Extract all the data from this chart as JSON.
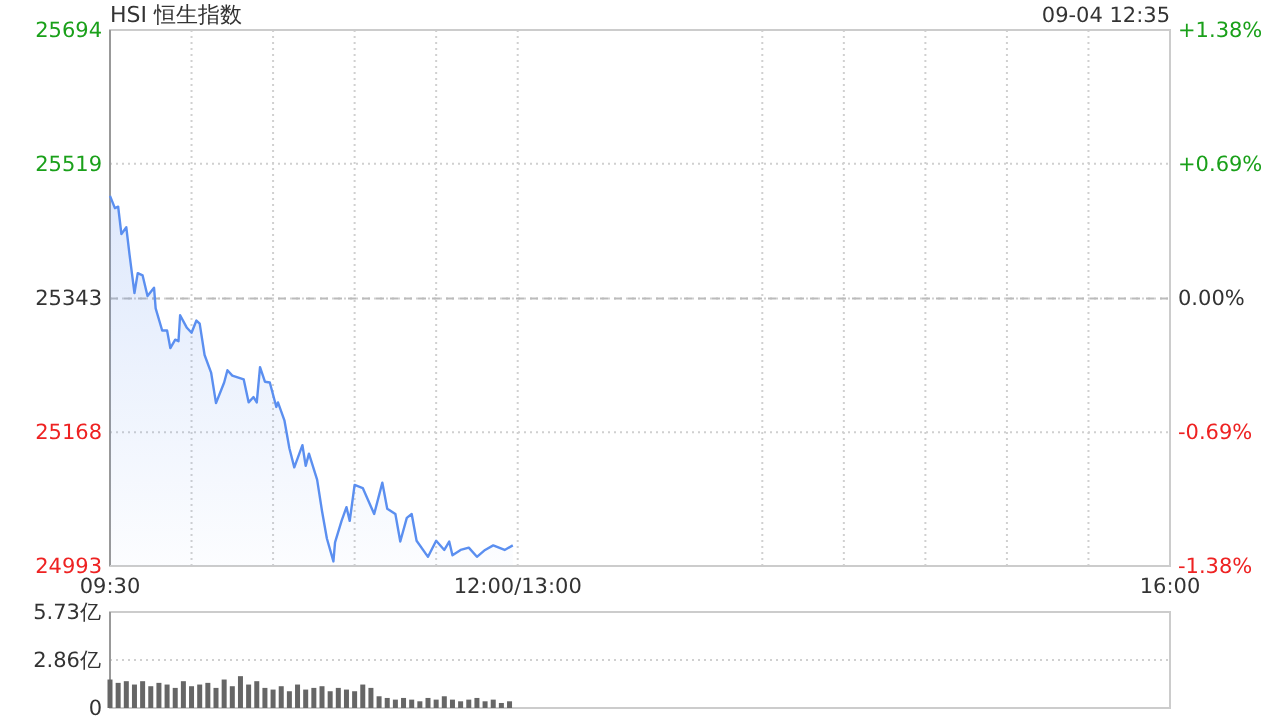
{
  "chart_data": [
    {
      "type": "area",
      "title": "HSI 恒生指数",
      "annotations": [
        "09-04 12:35"
      ],
      "x": [
        9.5,
        9.53,
        9.55,
        9.57,
        9.6,
        9.62,
        9.65,
        9.67,
        9.7,
        9.73,
        9.77,
        9.78,
        9.82,
        9.85,
        9.87,
        9.9,
        9.92,
        9.93,
        9.97,
        10,
        10.03,
        10.05,
        10.08,
        10.12,
        10.15,
        10.2,
        10.22,
        10.25,
        10.32,
        10.35,
        10.38,
        10.4,
        10.42,
        10.45,
        10.48,
        10.52,
        10.53,
        10.57,
        10.6,
        10.63,
        10.68,
        10.7,
        10.72,
        10.77,
        10.8,
        10.83,
        10.87,
        10.88,
        10.92,
        10.95,
        10.97,
        11,
        11.05,
        11.12,
        11.17,
        11.2,
        11.25,
        11.28,
        11.32,
        11.35,
        11.38,
        11.45,
        11.5,
        11.55,
        11.58,
        11.6,
        11.65,
        11.7,
        11.75,
        11.8,
        11.85,
        11.92,
        11.97
      ],
      "series": [
        {
          "color": "#5b8ff0",
          "values": [
            25477,
            25461,
            25463,
            25427,
            25436,
            25400,
            25350,
            25376,
            25373,
            25346,
            25357,
            25330,
            25301,
            25301,
            25278,
            25289,
            25287,
            25321,
            25305,
            25298,
            25314,
            25310,
            25269,
            25246,
            25206,
            25233,
            25249,
            25242,
            25237,
            25207,
            25214,
            25207,
            25253,
            25234,
            25233,
            25201,
            25207,
            25183,
            25147,
            25122,
            25151,
            25124,
            25140,
            25106,
            25065,
            25029,
            24999,
            25024,
            25052,
            25070,
            25052,
            25099,
            25095,
            25061,
            25102,
            25068,
            25061,
            25025,
            25056,
            25061,
            25026,
            25005,
            25026,
            25014,
            25025,
            25007,
            25014,
            25017,
            25005,
            25014,
            25020,
            25014,
            25020
          ]
        }
      ],
      "xlim": [
        9.5,
        16
      ],
      "xticks": [
        {
          "value": 9.5,
          "label": "09:30"
        },
        {
          "value": 10,
          "label": null
        },
        {
          "value": 10.5,
          "label": null
        },
        {
          "value": 11,
          "label": null
        },
        {
          "value": 11.5,
          "label": null
        },
        {
          "value": 12,
          "label": "12:00/13:00"
        },
        {
          "value": 13.5,
          "label": null
        },
        {
          "value": 14,
          "label": null
        },
        {
          "value": 14.5,
          "label": null
        },
        {
          "value": 15,
          "label": null
        },
        {
          "value": 15.5,
          "label": null
        },
        {
          "value": 16,
          "label": "16:00"
        }
      ],
      "ylim": [
        24993,
        25694
      ],
      "yticks": [
        24993,
        25168,
        25343,
        25519,
        25694
      ],
      "y2lim": [
        -1.38,
        1.38
      ],
      "y2ticks": [
        {
          "value": -1.38,
          "label": "-1.38%"
        },
        {
          "value": -0.69,
          "label": "-0.69%"
        },
        {
          "value": 0,
          "label": "0.00%"
        },
        {
          "value": 0.69,
          "label": "+0.69%"
        },
        {
          "value": 1.38,
          "label": "+1.38%"
        }
      ],
      "ref_lines": [
        {
          "axis": "y",
          "value": 25343,
          "line_style": "dashed",
          "color": "#bbbbbb"
        }
      ],
      "grid": true
    },
    {
      "type": "bar",
      "x": [
        9.5,
        9.55,
        9.6,
        9.65,
        9.7,
        9.75,
        9.8,
        9.85,
        9.9,
        9.95,
        10,
        10.05,
        10.1,
        10.15,
        10.2,
        10.25,
        10.3,
        10.35,
        10.4,
        10.45,
        10.5,
        10.55,
        10.6,
        10.65,
        10.7,
        10.75,
        10.8,
        10.85,
        10.9,
        10.95,
        11,
        11.05,
        11.1,
        11.15,
        11.2,
        11.25,
        11.3,
        11.35,
        11.4,
        11.45,
        11.5,
        11.55,
        11.6,
        11.65,
        11.7,
        11.75,
        11.8,
        11.85,
        11.9,
        11.95
      ],
      "series": [
        {
          "color": "#666666",
          "values": [
            1.7,
            1.5,
            1.6,
            1.4,
            1.6,
            1.3,
            1.5,
            1.4,
            1.2,
            1.6,
            1.3,
            1.4,
            1.5,
            1.2,
            1.7,
            1.3,
            1.9,
            1.4,
            1.6,
            1.2,
            1.1,
            1.3,
            1.0,
            1.4,
            1.1,
            1.2,
            1.3,
            1.0,
            1.2,
            1.1,
            1.0,
            1.4,
            1.2,
            0.7,
            0.6,
            0.5,
            0.6,
            0.5,
            0.4,
            0.6,
            0.5,
            0.7,
            0.5,
            0.4,
            0.5,
            0.6,
            0.4,
            0.5,
            0.3,
            0.4
          ]
        }
      ],
      "xlim": [
        9.5,
        16
      ],
      "ylim": [
        0,
        5.73
      ],
      "yticks": [
        0,
        {
          "value": 2.86,
          "label": "2.86亿"
        },
        {
          "value": 5.73,
          "label": "5.73亿"
        }
      ],
      "tick_labels": "y",
      "grid": "y"
    }
  ]
}
